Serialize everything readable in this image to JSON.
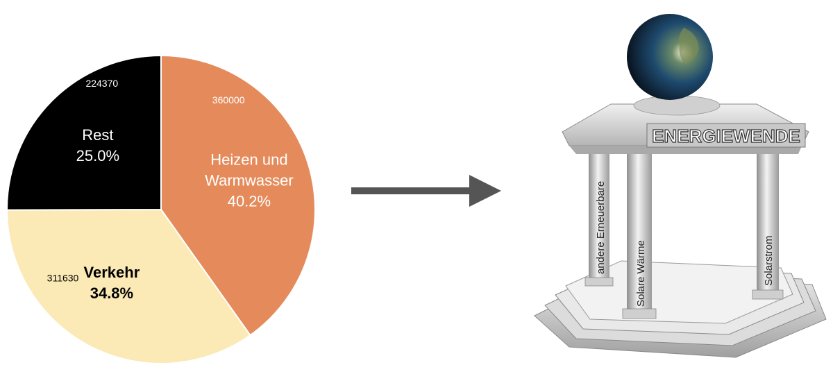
{
  "chart_data": {
    "type": "pie",
    "slices": [
      {
        "label_lines": [
          "Heizen und",
          "Warmwasser"
        ],
        "value": 360000,
        "value_text": "360000",
        "percent_text": "40.2%",
        "color": "#e58b5b",
        "label_color": "#ffffff"
      },
      {
        "label_lines": [
          "Verkehr"
        ],
        "value": 311630,
        "value_text": "311630",
        "percent_text": "34.8%",
        "color": "#fbeab6",
        "label_color": "#000000"
      },
      {
        "label_lines": [
          "Rest"
        ],
        "value": 224370,
        "value_text": "224370",
        "percent_text": "25.0%",
        "color": "#000000",
        "label_color": "#ffffff"
      }
    ],
    "start_angle_deg": 0,
    "direction": "clockwise"
  },
  "illustration": {
    "banner": "ENERGIEWENDE",
    "pillars": [
      "andere Erneuerbare",
      "Solare Wärme",
      "Solarstrom"
    ]
  },
  "colors": {
    "arrow": "#555555",
    "stone": "#d9d9d9",
    "stone_dark": "#9a9a9a"
  }
}
